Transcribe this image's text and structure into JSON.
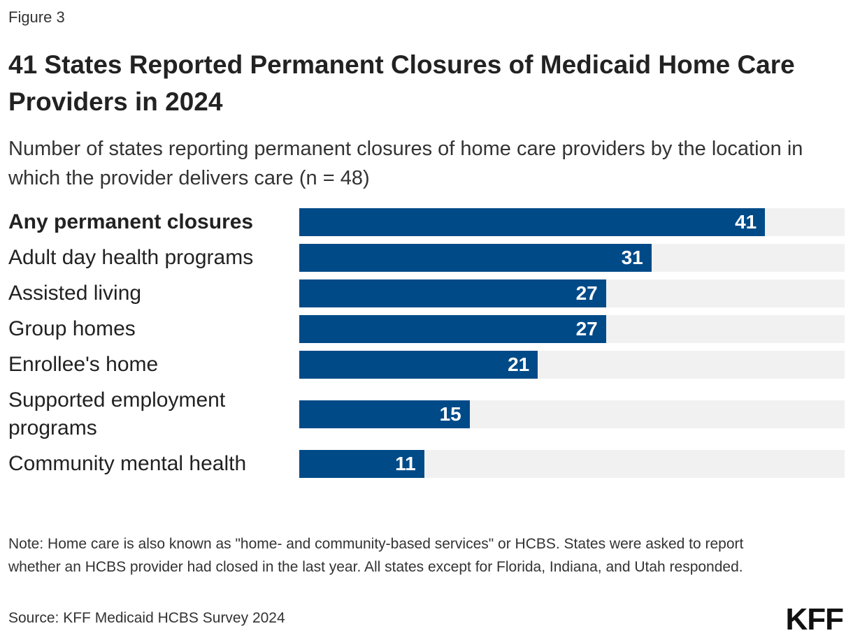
{
  "chart_data": {
    "type": "bar",
    "orientation": "horizontal",
    "figure_label": "Figure 3",
    "title": "41 States Reported Permanent Closures of Medicaid Home Care Providers in 2024",
    "subtitle": "Number of states reporting permanent closures of home care providers by the location in which the provider delivers care (n = 48)",
    "categories": [
      "Any permanent closures",
      "Adult day health programs",
      "Assisted living",
      "Group homes",
      "Enrollee's home",
      "Supported employment programs",
      "Community mental health"
    ],
    "values": [
      41,
      31,
      27,
      27,
      21,
      15,
      11
    ],
    "color": "#004a88",
    "track_color": "#f1f1f1",
    "xlim": [
      0,
      48
    ],
    "note": "Note: Home care is also known as \"home- and community-based services\" or HCBS. States were asked to report whether an HCBS provider had closed in the last year. All states except for Florida, Indiana, and Utah responded.",
    "source": "Source: KFF Medicaid HCBS Survey 2024",
    "logo": "KFF"
  }
}
